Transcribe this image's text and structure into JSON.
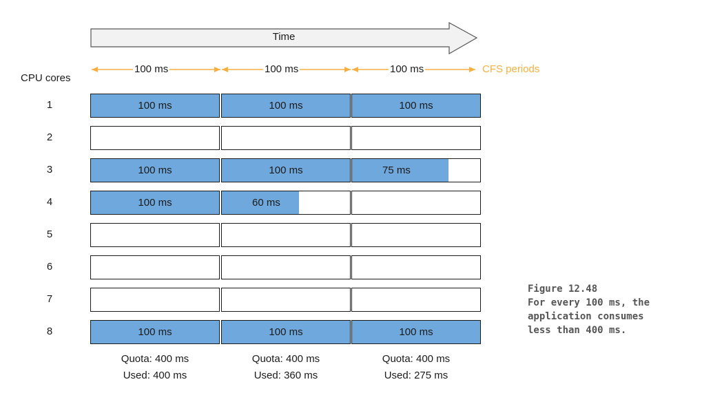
{
  "colors": {
    "fill": "#6fa8dc",
    "orange": "#f5b041",
    "border": "#1a1a1a",
    "caption": "#555555"
  },
  "time_label": "Time",
  "axis_title": "CPU cores",
  "period_label": "100 ms",
  "cfs_label": "CFS periods",
  "cores": [
    {
      "label": "1",
      "cells": [
        {
          "used_ms": 100,
          "text": "100 ms"
        },
        {
          "used_ms": 100,
          "text": "100 ms"
        },
        {
          "used_ms": 100,
          "text": "100 ms"
        }
      ]
    },
    {
      "label": "2",
      "cells": [
        {
          "used_ms": 0,
          "text": ""
        },
        {
          "used_ms": 0,
          "text": ""
        },
        {
          "used_ms": 0,
          "text": ""
        }
      ]
    },
    {
      "label": "3",
      "cells": [
        {
          "used_ms": 100,
          "text": "100 ms"
        },
        {
          "used_ms": 100,
          "text": "100 ms"
        },
        {
          "used_ms": 75,
          "text": "75 ms"
        }
      ]
    },
    {
      "label": "4",
      "cells": [
        {
          "used_ms": 100,
          "text": "100 ms"
        },
        {
          "used_ms": 60,
          "text": "60 ms"
        },
        {
          "used_ms": 0,
          "text": ""
        }
      ]
    },
    {
      "label": "5",
      "cells": [
        {
          "used_ms": 0,
          "text": ""
        },
        {
          "used_ms": 0,
          "text": ""
        },
        {
          "used_ms": 0,
          "text": ""
        }
      ]
    },
    {
      "label": "6",
      "cells": [
        {
          "used_ms": 0,
          "text": ""
        },
        {
          "used_ms": 0,
          "text": ""
        },
        {
          "used_ms": 0,
          "text": ""
        }
      ]
    },
    {
      "label": "7",
      "cells": [
        {
          "used_ms": 0,
          "text": ""
        },
        {
          "used_ms": 0,
          "text": ""
        },
        {
          "used_ms": 0,
          "text": ""
        }
      ]
    },
    {
      "label": "8",
      "cells": [
        {
          "used_ms": 100,
          "text": "100 ms"
        },
        {
          "used_ms": 100,
          "text": "100 ms"
        },
        {
          "used_ms": 100,
          "text": "100 ms"
        }
      ]
    }
  ],
  "period_ms": 100,
  "periods": [
    {
      "quota": "Quota: 400 ms",
      "used": "Used: 400 ms"
    },
    {
      "quota": "Quota: 400 ms",
      "used": "Used: 360 ms"
    },
    {
      "quota": "Quota: 400 ms",
      "used": "Used: 275 ms"
    }
  ],
  "caption": {
    "title": "Figure 12.48",
    "lines": [
      "For every 100 ms, the",
      "application consumes",
      "less than 400 ms."
    ]
  }
}
